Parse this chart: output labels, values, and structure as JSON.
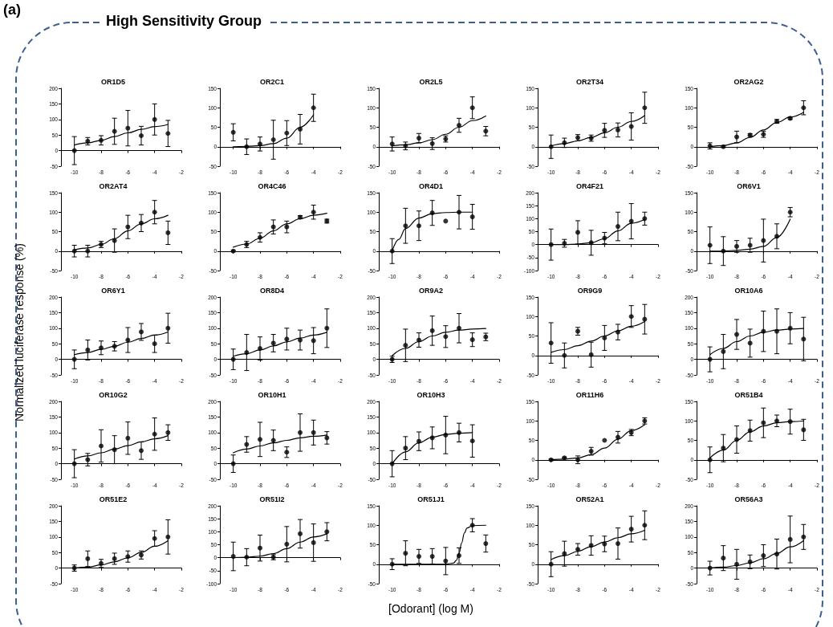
{
  "chart_data": [
    {
      "type": "other",
      "title": "High Sensitivity Group",
      "annotations": [
        "(a)"
      ]
    },
    {
      "type": "scatter",
      "title": "OR1D5",
      "x": [
        -10,
        -9,
        -8,
        -7,
        -6,
        -5,
        -4,
        -3
      ],
      "xlim": [
        -11,
        -2
      ],
      "xticks": [
        -10,
        -8,
        -6,
        -4,
        -2
      ],
      "ylim": [
        -50,
        200
      ],
      "yticks": [
        -50,
        0,
        50,
        100,
        150,
        200
      ],
      "marker": "circle",
      "series": [
        {
          "color": "#000000",
          "values": [
            0,
            30,
            33,
            62,
            72,
            48,
            100,
            55
          ],
          "errors": [
            45,
            12,
            15,
            42,
            57,
            30,
            50,
            42
          ]
        },
        {
          "type": "line",
          "marker": "none",
          "color": "#000000",
          "x": [
            -10,
            -9,
            -8,
            -7,
            -6,
            -5,
            -4,
            -3
          ],
          "values": [
            18,
            25,
            33,
            45,
            57,
            68,
            77,
            84
          ]
        }
      ]
    },
    {
      "type": "scatter",
      "title": "OR2C1",
      "x": [
        -10,
        -9,
        -8,
        -7,
        -6,
        -5,
        -4
      ],
      "xlim": [
        -11,
        -2
      ],
      "xticks": [
        -10,
        -8,
        -6,
        -4,
        -2
      ],
      "ylim": [
        -50,
        150
      ],
      "yticks": [
        -50,
        0,
        50,
        100,
        150
      ],
      "marker": "circle",
      "series": [
        {
          "color": "#000000",
          "values": [
            37,
            0,
            7,
            18,
            35,
            45,
            100
          ],
          "errors": [
            22,
            20,
            18,
            50,
            32,
            38,
            35
          ]
        },
        {
          "type": "line",
          "marker": "none",
          "color": "#000000",
          "x": [
            -10,
            -9,
            -8,
            -7,
            -6,
            -5,
            -4
          ],
          "values": [
            0,
            1,
            3,
            8,
            22,
            50,
            82
          ]
        }
      ]
    },
    {
      "type": "scatter",
      "title": "OR2L5",
      "x": [
        -10,
        -9,
        -8,
        -7,
        -6,
        -5,
        -4,
        -3
      ],
      "xlim": [
        -11,
        -2
      ],
      "xticks": [
        -10,
        -8,
        -6,
        -4,
        -2
      ],
      "ylim": [
        -50,
        150
      ],
      "yticks": [
        -50,
        0,
        50,
        100,
        150
      ],
      "marker": "circle",
      "series": [
        {
          "color": "#000000",
          "values": [
            7,
            2,
            22,
            8,
            20,
            55,
            100,
            40
          ],
          "errors": [
            18,
            10,
            12,
            15,
            8,
            18,
            28,
            12
          ]
        },
        {
          "type": "line",
          "marker": "none",
          "color": "#000000",
          "x": [
            -10,
            -9,
            -8,
            -7,
            -6,
            -5,
            -4,
            -3
          ],
          "values": [
            2,
            5,
            10,
            18,
            32,
            50,
            67,
            79
          ]
        }
      ]
    },
    {
      "type": "scatter",
      "title": "OR2T34",
      "x": [
        -10,
        -9,
        -8,
        -7,
        -6,
        -5,
        -4,
        -3
      ],
      "xlim": [
        -11,
        -2
      ],
      "xticks": [
        -10,
        -8,
        -6,
        -4,
        -2
      ],
      "ylim": [
        -50,
        150
      ],
      "yticks": [
        -50,
        0,
        50,
        100,
        150
      ],
      "marker": "circle",
      "series": [
        {
          "color": "#000000",
          "values": [
            0,
            10,
            23,
            22,
            42,
            43,
            52,
            100
          ],
          "errors": [
            30,
            12,
            8,
            8,
            18,
            18,
            35,
            40
          ]
        },
        {
          "type": "line",
          "marker": "none",
          "color": "#000000",
          "x": [
            -10,
            -9,
            -8,
            -7,
            -6,
            -5,
            -4,
            -3
          ],
          "values": [
            2,
            8,
            15,
            24,
            36,
            50,
            65,
            80
          ]
        }
      ]
    },
    {
      "type": "scatter",
      "title": "OR2AG2",
      "x": [
        -10,
        -9,
        -8,
        -7,
        -6,
        -5,
        -4,
        -3
      ],
      "xlim": [
        -11,
        -2
      ],
      "xticks": [
        -10,
        -8,
        -6,
        -4,
        -2
      ],
      "ylim": [
        -50,
        150
      ],
      "yticks": [
        -50,
        0,
        50,
        100,
        150
      ],
      "marker": "circle",
      "series": [
        {
          "color": "#000000",
          "values": [
            2,
            0,
            25,
            30,
            32,
            65,
            73,
            100
          ],
          "errors": [
            8,
            2,
            15,
            3,
            8,
            5,
            3,
            18
          ]
        },
        {
          "type": "line",
          "marker": "none",
          "color": "#000000",
          "x": [
            -10,
            -9,
            -8,
            -7,
            -6,
            -5,
            -4,
            -3
          ],
          "values": [
            0,
            3,
            10,
            24,
            43,
            62,
            76,
            88
          ]
        }
      ]
    },
    {
      "type": "scatter",
      "title": "OR2AT4",
      "x": [
        -10,
        -9,
        -8,
        -7,
        -6,
        -5,
        -4,
        -3
      ],
      "xlim": [
        -11,
        -2
      ],
      "xticks": [
        -10,
        -8,
        -6,
        -4,
        -2
      ],
      "ylim": [
        -50,
        150
      ],
      "yticks": [
        -50,
        0,
        50,
        100,
        150
      ],
      "marker": "circle",
      "series": [
        {
          "color": "#000000",
          "values": [
            0,
            0,
            17,
            27,
            62,
            72,
            100,
            47
          ],
          "errors": [
            15,
            15,
            8,
            30,
            30,
            22,
            30,
            30
          ]
        },
        {
          "type": "line",
          "marker": "none",
          "color": "#000000",
          "x": [
            -10,
            -9,
            -8,
            -7,
            -6,
            -5,
            -4,
            -3
          ],
          "values": [
            3,
            8,
            17,
            32,
            52,
            70,
            83,
            92
          ]
        }
      ]
    },
    {
      "type": "scatter",
      "title": "OR4C46",
      "x": [
        -10,
        -9,
        -8,
        -7,
        -6,
        -5,
        -4,
        -3
      ],
      "xlim": [
        -11,
        -2
      ],
      "xticks": [
        -10,
        -8,
        -6,
        -4,
        -2
      ],
      "ylim": [
        -50,
        150
      ],
      "yticks": [
        -50,
        0,
        50,
        100,
        150
      ],
      "marker": "circle",
      "series": [
        {
          "color": "#000000",
          "values": [
            0,
            17,
            35,
            62,
            62,
            87,
            100,
            77
          ],
          "errors": [
            2,
            8,
            12,
            18,
            15,
            4,
            18,
            5
          ]
        },
        {
          "type": "line",
          "marker": "none",
          "color": "#000000",
          "x": [
            -10,
            -9,
            -8,
            -7,
            -6,
            -5,
            -4,
            -3
          ],
          "values": [
            10,
            18,
            33,
            52,
            70,
            83,
            92,
            97
          ]
        }
      ]
    },
    {
      "type": "scatter",
      "title": "OR4D1",
      "x": [
        -10,
        -9,
        -8,
        -7,
        -6,
        -5,
        -4
      ],
      "xlim": [
        -11,
        -2
      ],
      "xticks": [
        -10,
        -8,
        -6,
        -4,
        -2
      ],
      "ylim": [
        -50,
        150
      ],
      "yticks": [
        -50,
        0,
        50,
        100,
        150
      ],
      "marker": "circle",
      "series": [
        {
          "color": "#000000",
          "values": [
            0,
            65,
            65,
            98,
            77,
            100,
            88
          ],
          "errors": [
            32,
            45,
            38,
            32,
            null,
            43,
            32
          ]
        },
        {
          "type": "line",
          "marker": "none",
          "color": "#000000",
          "x": [
            -10,
            -9.5,
            -9,
            -8,
            -7,
            -6,
            -5,
            -4
          ],
          "values": [
            0,
            30,
            58,
            85,
            96,
            99,
            100,
            100
          ]
        }
      ]
    },
    {
      "type": "scatter",
      "title": "OR4F21",
      "x": [
        -10,
        -9,
        -8,
        -7,
        -6,
        -5,
        -4,
        -3
      ],
      "xlim": [
        -11,
        -2
      ],
      "xticks": [
        -10,
        -8,
        -6,
        -4,
        -2
      ],
      "ylim": [
        -100,
        200
      ],
      "yticks": [
        -100,
        -50,
        0,
        50,
        100,
        150,
        200
      ],
      "marker": "circle",
      "series": [
        {
          "color": "#000000",
          "values": [
            0,
            5,
            47,
            7,
            25,
            70,
            90,
            100
          ],
          "errors": [
            60,
            15,
            45,
            48,
            22,
            55,
            68,
            25
          ]
        },
        {
          "type": "line",
          "marker": "none",
          "color": "#000000",
          "x": [
            -10,
            -9,
            -8,
            -7,
            -6,
            -5,
            -4,
            -3
          ],
          "values": [
            0,
            0,
            2,
            7,
            23,
            53,
            82,
            97
          ]
        }
      ]
    },
    {
      "type": "scatter",
      "title": "OR6V1",
      "x": [
        -10,
        -9,
        -8,
        -7,
        -6,
        -5,
        -4
      ],
      "xlim": [
        -11,
        -2
      ],
      "xticks": [
        -10,
        -8,
        -6,
        -4,
        -2
      ],
      "ylim": [
        -50,
        150
      ],
      "yticks": [
        -50,
        0,
        50,
        100,
        150
      ],
      "marker": "circle",
      "series": [
        {
          "color": "#000000",
          "values": [
            15,
            0,
            12,
            15,
            27,
            38,
            100
          ],
          "errors": [
            47,
            37,
            15,
            18,
            55,
            32,
            12
          ]
        },
        {
          "type": "line",
          "marker": "none",
          "color": "#000000",
          "x": [
            -10,
            -9,
            -8,
            -7,
            -6,
            -5,
            -4
          ],
          "values": [
            0,
            0,
            2,
            5,
            12,
            35,
            82
          ]
        }
      ]
    },
    {
      "type": "scatter",
      "title": "OR6Y1",
      "ylabel": "Normalized luciferase response (%)",
      "x": [
        -10,
        -9,
        -8,
        -7,
        -6,
        -5,
        -4,
        -3
      ],
      "xlim": [
        -11,
        -2
      ],
      "xticks": [
        -10,
        -8,
        -6,
        -4,
        -2
      ],
      "ylim": [
        -50,
        200
      ],
      "yticks": [
        -50,
        0,
        50,
        100,
        150,
        200
      ],
      "marker": "circle",
      "series": [
        {
          "color": "#000000",
          "values": [
            0,
            30,
            37,
            42,
            62,
            88,
            50,
            100
          ],
          "errors": [
            30,
            32,
            22,
            15,
            40,
            27,
            28,
            48
          ]
        },
        {
          "type": "line",
          "marker": "none",
          "color": "#000000",
          "x": [
            -10,
            -9,
            -8,
            -7,
            -6,
            -5,
            -4,
            -3
          ],
          "values": [
            15,
            22,
            32,
            42,
            55,
            67,
            78,
            88
          ]
        }
      ]
    },
    {
      "type": "scatter",
      "title": "OR8D4",
      "x": [
        -10,
        -9,
        -8,
        -7,
        -6,
        -5,
        -4,
        -3
      ],
      "xlim": [
        -11,
        -2
      ],
      "xticks": [
        -10,
        -8,
        -6,
        -4,
        -2
      ],
      "ylim": [
        -50,
        200
      ],
      "yticks": [
        -50,
        0,
        50,
        100,
        150,
        200
      ],
      "marker": "circle",
      "series": [
        {
          "color": "#000000",
          "values": [
            0,
            22,
            35,
            52,
            65,
            62,
            60,
            100
          ],
          "errors": [
            33,
            58,
            37,
            28,
            35,
            32,
            42,
            62
          ]
        },
        {
          "type": "line",
          "marker": "none",
          "color": "#000000",
          "x": [
            -10,
            -9,
            -8,
            -7,
            -6,
            -5,
            -4,
            -3
          ],
          "values": [
            10,
            18,
            30,
            43,
            56,
            68,
            78,
            87
          ]
        }
      ]
    },
    {
      "type": "scatter",
      "title": "OR9A2",
      "x": [
        -10,
        -9,
        -8,
        -7,
        -6,
        -5,
        -4,
        -3
      ],
      "xlim": [
        -11,
        -2
      ],
      "xticks": [
        -10,
        -8,
        -6,
        -4,
        -2
      ],
      "ylim": [
        -50,
        200
      ],
      "yticks": [
        -50,
        0,
        50,
        100,
        150,
        200
      ],
      "marker": "circle",
      "series": [
        {
          "color": "#000000",
          "values": [
            0,
            45,
            62,
            92,
            73,
            100,
            63,
            72
          ],
          "errors": [
            10,
            52,
            23,
            47,
            35,
            47,
            22,
            12
          ]
        },
        {
          "type": "line",
          "marker": "none",
          "color": "#000000",
          "x": [
            -10,
            -9,
            -8,
            -7,
            -6,
            -5,
            -4,
            -3
          ],
          "values": [
            12,
            35,
            57,
            75,
            87,
            94,
            97,
            99
          ]
        }
      ]
    },
    {
      "type": "scatter",
      "title": "OR9G9",
      "x": [
        -10,
        -9,
        -8,
        -7,
        -6,
        -5,
        -4,
        -3
      ],
      "xlim": [
        -11,
        -2
      ],
      "xticks": [
        -10,
        -8,
        -6,
        -4,
        -2
      ],
      "ylim": [
        -50,
        150
      ],
      "yticks": [
        -50,
        0,
        50,
        100,
        150
      ],
      "marker": "circle",
      "series": [
        {
          "color": "#000000",
          "values": [
            32,
            0,
            62,
            2,
            45,
            60,
            100,
            93
          ],
          "errors": [
            52,
            32,
            10,
            32,
            32,
            20,
            28,
            38
          ]
        },
        {
          "type": "line",
          "marker": "none",
          "color": "#000000",
          "x": [
            -10,
            -9,
            -8,
            -7,
            -6,
            -5,
            -4,
            -3
          ],
          "values": [
            8,
            15,
            25,
            37,
            50,
            63,
            75,
            87
          ]
        }
      ]
    },
    {
      "type": "scatter",
      "title": "OR10A6",
      "x": [
        -10,
        -9,
        -8,
        -7,
        -6,
        -5,
        -4,
        -3
      ],
      "xlim": [
        -11,
        -2
      ],
      "xticks": [
        -10,
        -8,
        -6,
        -4,
        -2
      ],
      "ylim": [
        -50,
        200
      ],
      "yticks": [
        -50,
        0,
        50,
        100,
        150,
        200
      ],
      "marker": "circle",
      "series": [
        {
          "color": "#000000",
          "values": [
            0,
            25,
            80,
            52,
            90,
            90,
            100,
            65
          ],
          "errors": [
            40,
            55,
            48,
            45,
            65,
            72,
            50,
            70
          ]
        },
        {
          "type": "line",
          "marker": "none",
          "color": "#000000",
          "x": [
            -10,
            -9,
            -8,
            -7,
            -6,
            -5,
            -4,
            -3
          ],
          "values": [
            15,
            35,
            57,
            75,
            87,
            94,
            97,
            99
          ]
        }
      ]
    },
    {
      "type": "scatter",
      "title": "OR10G2",
      "x": [
        -10,
        -9,
        -8,
        -7,
        -6,
        -5,
        -4,
        -3
      ],
      "xlim": [
        -11,
        -2
      ],
      "xticks": [
        -10,
        -8,
        -6,
        -4,
        -2
      ],
      "ylim": [
        -50,
        200
      ],
      "yticks": [
        -50,
        0,
        50,
        100,
        150,
        200
      ],
      "marker": "circle",
      "series": [
        {
          "color": "#000000",
          "values": [
            0,
            13,
            57,
            45,
            82,
            42,
            95,
            100
          ],
          "errors": [
            45,
            20,
            52,
            45,
            52,
            28,
            52,
            25
          ]
        },
        {
          "type": "line",
          "marker": "none",
          "color": "#000000",
          "x": [
            -10,
            -9,
            -8,
            -7,
            -6,
            -5,
            -4,
            -3
          ],
          "values": [
            15,
            25,
            35,
            47,
            58,
            70,
            80,
            90
          ]
        }
      ]
    },
    {
      "type": "scatter",
      "title": "OR10H1",
      "x": [
        -10,
        -9,
        -8,
        -7,
        -6,
        -5,
        -4,
        -3
      ],
      "xlim": [
        -11,
        -2
      ],
      "xticks": [
        -10,
        -8,
        -6,
        -4,
        -2
      ],
      "ylim": [
        -50,
        200
      ],
      "yticks": [
        -50,
        0,
        50,
        100,
        150,
        200
      ],
      "marker": "circle",
      "series": [
        {
          "color": "#000000",
          "values": [
            0,
            62,
            78,
            75,
            37,
            100,
            100,
            83
          ],
          "errors": [
            28,
            25,
            55,
            33,
            17,
            60,
            40,
            20
          ]
        },
        {
          "type": "line",
          "marker": "none",
          "color": "#000000",
          "x": [
            -10,
            -9,
            -8,
            -7,
            -6,
            -5,
            -4,
            -3
          ],
          "values": [
            35,
            47,
            57,
            67,
            75,
            83,
            88,
            92
          ]
        }
      ]
    },
    {
      "type": "scatter",
      "title": "OR10H3",
      "x": [
        -10,
        -9,
        -8,
        -7,
        -6,
        -5,
        -4
      ],
      "xlim": [
        -11,
        -2
      ],
      "xticks": [
        -10,
        -8,
        -6,
        -4,
        -2
      ],
      "ylim": [
        -50,
        200
      ],
      "yticks": [
        -50,
        0,
        50,
        100,
        150,
        200
      ],
      "marker": "circle",
      "series": [
        {
          "color": "#000000",
          "values": [
            0,
            50,
            72,
            83,
            92,
            100,
            73
          ],
          "errors": [
            42,
            37,
            30,
            35,
            60,
            30,
            52
          ]
        },
        {
          "type": "line",
          "marker": "none",
          "color": "#000000",
          "x": [
            -10,
            -9,
            -8,
            -7,
            -6,
            -5,
            -4
          ],
          "values": [
            0,
            38,
            67,
            85,
            94,
            98,
            100
          ]
        }
      ]
    },
    {
      "type": "scatter",
      "title": "OR11H6",
      "x": [
        -10,
        -9,
        -8,
        -7,
        -6,
        -5,
        -4,
        -3
      ],
      "xlim": [
        -11,
        -2
      ],
      "xticks": [
        -10,
        -8,
        -6,
        -4,
        -2
      ],
      "ylim": [
        -50,
        150
      ],
      "yticks": [
        -50,
        0,
        50,
        100,
        150
      ],
      "marker": "circle",
      "series": [
        {
          "color": "#000000",
          "values": [
            0,
            5,
            0,
            22,
            50,
            58,
            70,
            100
          ],
          "errors": [
            2,
            2,
            10,
            10,
            null,
            15,
            8,
            8
          ]
        },
        {
          "type": "line",
          "marker": "none",
          "color": "#000000",
          "x": [
            -10,
            -9,
            -8,
            -7,
            -6,
            -5,
            -4,
            -3
          ],
          "values": [
            0,
            2,
            5,
            13,
            30,
            53,
            75,
            90
          ]
        }
      ]
    },
    {
      "type": "scatter",
      "title": "OR51B4",
      "x": [
        -10,
        -9,
        -8,
        -7,
        -6,
        -5,
        -4,
        -3
      ],
      "xlim": [
        -11,
        -2
      ],
      "xticks": [
        -10,
        -8,
        -6,
        -4,
        -2
      ],
      "ylim": [
        -50,
        150
      ],
      "yticks": [
        -50,
        0,
        50,
        100,
        150
      ],
      "marker": "circle",
      "series": [
        {
          "color": "#000000",
          "values": [
            0,
            30,
            52,
            75,
            95,
            100,
            98,
            77
          ],
          "errors": [
            33,
            35,
            35,
            27,
            38,
            15,
            32,
            27
          ]
        },
        {
          "type": "line",
          "marker": "none",
          "color": "#000000",
          "x": [
            -10,
            -9,
            -8,
            -7,
            -6,
            -5,
            -4,
            -3
          ],
          "values": [
            5,
            25,
            50,
            72,
            87,
            95,
            98,
            100
          ]
        }
      ]
    },
    {
      "type": "scatter",
      "title": "OR51E2",
      "x": [
        -10,
        -9,
        -8,
        -7,
        -6,
        -5,
        -4,
        -3
      ],
      "xlim": [
        -11,
        -2
      ],
      "xticks": [
        -10,
        -8,
        -6,
        -4,
        -2
      ],
      "ylim": [
        -50,
        200
      ],
      "yticks": [
        -50,
        0,
        50,
        100,
        150,
        200
      ],
      "marker": "circle",
      "series": [
        {
          "color": "#000000",
          "values": [
            0,
            30,
            15,
            30,
            37,
            42,
            95,
            100
          ],
          "errors": [
            10,
            25,
            13,
            18,
            18,
            13,
            25,
            55
          ]
        },
        {
          "type": "line",
          "marker": "none",
          "color": "#000000",
          "x": [
            -10,
            -9,
            -8,
            -7,
            -6,
            -5,
            -4,
            -3
          ],
          "values": [
            0,
            3,
            10,
            20,
            33,
            50,
            70,
            88
          ]
        }
      ]
    },
    {
      "type": "scatter",
      "title": "OR51I2",
      "x": [
        -10,
        -9,
        -8,
        -7,
        -6,
        -5,
        -4,
        -3
      ],
      "xlim": [
        -11,
        -2
      ],
      "xticks": [
        -10,
        -8,
        -6,
        -4,
        -2
      ],
      "ylim": [
        -100,
        200
      ],
      "yticks": [
        -100,
        -50,
        0,
        50,
        100,
        150,
        200
      ],
      "marker": "circle",
      "series": [
        {
          "color": "#000000",
          "values": [
            5,
            2,
            37,
            2,
            52,
            92,
            58,
            100
          ],
          "errors": [
            55,
            33,
            50,
            10,
            68,
            55,
            72,
            35
          ]
        },
        {
          "type": "line",
          "marker": "none",
          "color": "#000000",
          "x": [
            -10,
            -9,
            -8,
            -7,
            -6,
            -5,
            -4,
            -3
          ],
          "values": [
            0,
            2,
            6,
            16,
            35,
            60,
            80,
            92
          ]
        }
      ]
    },
    {
      "type": "scatter",
      "title": "OR51J1",
      "xlabel": "[Odorant] (log M)",
      "x": [
        -10,
        -9,
        -8,
        -7,
        -6,
        -5,
        -4,
        -3
      ],
      "xlim": [
        -11,
        -2
      ],
      "xticks": [
        -10,
        -8,
        -6,
        -4,
        -2
      ],
      "ylim": [
        -50,
        150
      ],
      "yticks": [
        -50,
        0,
        50,
        100,
        150
      ],
      "marker": "circle",
      "series": [
        {
          "color": "#000000",
          "values": [
            0,
            28,
            20,
            20,
            8,
            22,
            100,
            53
          ],
          "errors": [
            14,
            32,
            18,
            20,
            35,
            20,
            17,
            22
          ]
        },
        {
          "type": "line",
          "marker": "none",
          "color": "#000000",
          "x": [
            -10,
            -6,
            -5.4,
            -5.2,
            -5,
            -4.8,
            -4.6,
            -4.4,
            -4,
            -3
          ],
          "values": [
            0,
            0,
            3,
            10,
            28,
            55,
            80,
            93,
            99,
            100
          ]
        }
      ]
    },
    {
      "type": "scatter",
      "title": "OR52A1",
      "x": [
        -10,
        -9,
        -8,
        -7,
        -6,
        -5,
        -4,
        -3
      ],
      "xlim": [
        -11,
        -2
      ],
      "xticks": [
        -10,
        -8,
        -6,
        -4,
        -2
      ],
      "ylim": [
        -50,
        150
      ],
      "yticks": [
        -50,
        0,
        50,
        100,
        150
      ],
      "marker": "circle",
      "series": [
        {
          "color": "#000000",
          "values": [
            0,
            27,
            38,
            48,
            52,
            53,
            90,
            100
          ],
          "errors": [
            32,
            32,
            15,
            25,
            20,
            40,
            33,
            37
          ]
        },
        {
          "type": "line",
          "marker": "none",
          "color": "#000000",
          "x": [
            -10,
            -9,
            -8,
            -7,
            -6,
            -5,
            -4,
            -3
          ],
          "values": [
            12,
            22,
            33,
            45,
            57,
            68,
            78,
            87
          ]
        }
      ]
    },
    {
      "type": "scatter",
      "title": "OR56A3",
      "x": [
        -10,
        -9,
        -8,
        -7,
        -6,
        -5,
        -4,
        -3
      ],
      "xlim": [
        -11,
        -2
      ],
      "xticks": [
        -10,
        -8,
        -6,
        -4,
        -2
      ],
      "ylim": [
        -50,
        200
      ],
      "yticks": [
        -50,
        0,
        50,
        100,
        150,
        200
      ],
      "marker": "circle",
      "series": [
        {
          "color": "#000000",
          "values": [
            0,
            32,
            12,
            20,
            40,
            45,
            92,
            100
          ],
          "errors": [
            22,
            40,
            48,
            22,
            35,
            48,
            75,
            40
          ]
        },
        {
          "type": "line",
          "marker": "none",
          "color": "#000000",
          "x": [
            -10,
            -9,
            -8,
            -7,
            -6,
            -5,
            -4,
            -3
          ],
          "values": [
            0,
            3,
            8,
            17,
            30,
            47,
            68,
            88
          ]
        }
      ]
    }
  ]
}
